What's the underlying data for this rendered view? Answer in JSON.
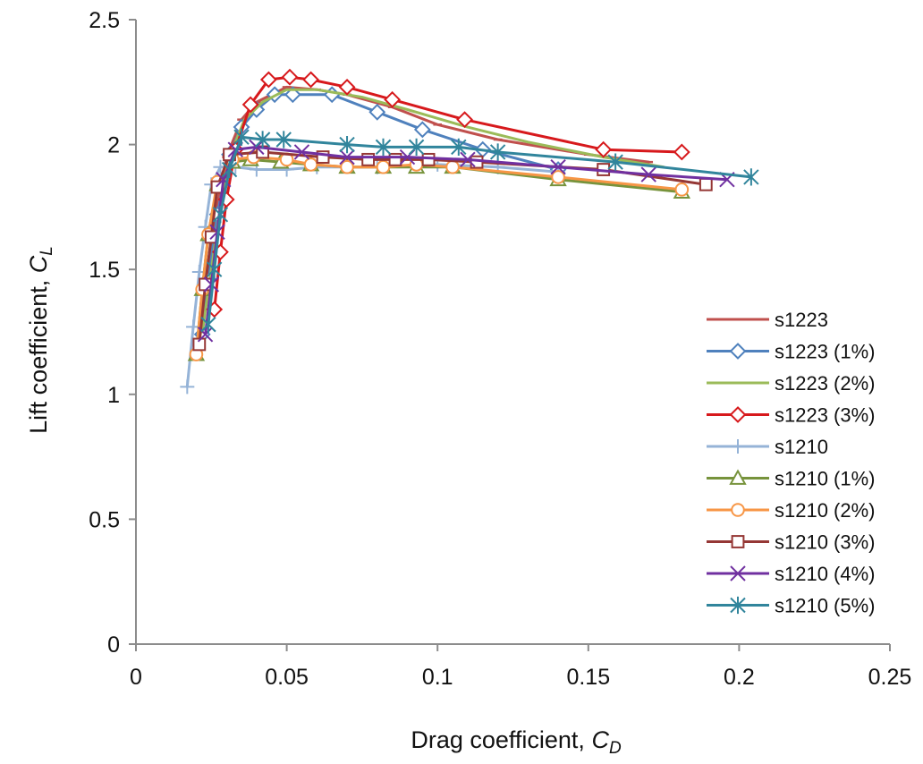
{
  "chart_data": {
    "type": "line",
    "title": "",
    "xlabel": "Drag coefficient, ",
    "xlabel_sub": "C",
    "xlabel_subscript": "D",
    "ylabel": "Lift coefficient, ",
    "ylabel_sub": "C",
    "ylabel_subscript": "L",
    "xlim": [
      0,
      0.25
    ],
    "ylim": [
      0,
      2.5
    ],
    "x_ticks": [
      0,
      0.05,
      0.1,
      0.15,
      0.2,
      0.25
    ],
    "x_tick_labels": [
      "0",
      "0.05",
      "0.1",
      "0.15",
      "0.2",
      "0.25"
    ],
    "y_ticks": [
      0,
      0.5,
      1,
      1.5,
      2,
      2.5
    ],
    "y_tick_labels": [
      "0",
      "0.5",
      "1",
      "1.5",
      "2",
      "2.5"
    ],
    "grid": false,
    "legend_position": "right",
    "series": [
      {
        "name": "s1223",
        "color": "#c0504d",
        "marker": "dash",
        "x": [
          0.021,
          0.023,
          0.026,
          0.03,
          0.035,
          0.04,
          0.05,
          0.06,
          0.07,
          0.085,
          0.1,
          0.12,
          0.15,
          0.17
        ],
        "y": [
          1.22,
          1.45,
          1.7,
          1.95,
          2.1,
          2.17,
          2.23,
          2.22,
          2.2,
          2.15,
          2.08,
          2.02,
          1.96,
          1.93
        ]
      },
      {
        "name": "s1223 (1%)",
        "color": "#4f81bd",
        "marker": "diamond",
        "x": [
          0.022,
          0.024,
          0.027,
          0.031,
          0.035,
          0.04,
          0.046,
          0.052,
          0.065,
          0.08,
          0.095,
          0.115,
          0.14
        ],
        "y": [
          1.24,
          1.46,
          1.72,
          1.96,
          2.07,
          2.14,
          2.2,
          2.2,
          2.2,
          2.13,
          2.06,
          1.98,
          1.9
        ]
      },
      {
        "name": "s1223 (2%)",
        "color": "#9bbb59",
        "marker": "none",
        "x": [
          0.022,
          0.025,
          0.028,
          0.032,
          0.036,
          0.042,
          0.05,
          0.06,
          0.075,
          0.09,
          0.11,
          0.13,
          0.155,
          0.175
        ],
        "y": [
          1.25,
          1.5,
          1.75,
          1.98,
          2.1,
          2.17,
          2.22,
          2.22,
          2.19,
          2.14,
          2.07,
          2.01,
          1.95,
          1.91
        ]
      },
      {
        "name": "s1223 (3%)",
        "color": "#d7191c",
        "marker": "diamond",
        "x": [
          0.026,
          0.028,
          0.03,
          0.033,
          0.038,
          0.044,
          0.051,
          0.058,
          0.07,
          0.085,
          0.109,
          0.155,
          0.181
        ],
        "y": [
          1.34,
          1.57,
          1.78,
          1.98,
          2.16,
          2.26,
          2.27,
          2.26,
          2.23,
          2.18,
          2.1,
          1.98,
          1.97
        ]
      },
      {
        "name": "s1210",
        "color": "#95b3d7",
        "marker": "plus",
        "x": [
          0.017,
          0.019,
          0.021,
          0.023,
          0.025,
          0.028,
          0.033,
          0.04,
          0.05,
          0.06,
          0.08,
          0.1,
          0.12,
          0.14
        ],
        "y": [
          1.03,
          1.27,
          1.49,
          1.67,
          1.84,
          1.91,
          1.91,
          1.9,
          1.9,
          1.91,
          1.91,
          1.92,
          1.91,
          1.89
        ]
      },
      {
        "name": "s1210 (1%)",
        "color": "#77933c",
        "marker": "triangle",
        "x": [
          0.02,
          0.022,
          0.024,
          0.027,
          0.032,
          0.038,
          0.048,
          0.058,
          0.07,
          0.082,
          0.093,
          0.105,
          0.14,
          0.181
        ],
        "y": [
          1.16,
          1.42,
          1.64,
          1.84,
          1.93,
          1.94,
          1.93,
          1.92,
          1.91,
          1.91,
          1.91,
          1.91,
          1.86,
          1.81
        ]
      },
      {
        "name": "s1210 (2%)",
        "color": "#f79646",
        "marker": "circle",
        "x": [
          0.02,
          0.022,
          0.024,
          0.027,
          0.032,
          0.039,
          0.05,
          0.058,
          0.07,
          0.082,
          0.093,
          0.105,
          0.14,
          0.181
        ],
        "y": [
          1.16,
          1.42,
          1.64,
          1.85,
          1.94,
          1.95,
          1.94,
          1.92,
          1.91,
          1.91,
          1.92,
          1.91,
          1.87,
          1.82
        ]
      },
      {
        "name": "s1210 (3%)",
        "color": "#953735",
        "marker": "square",
        "x": [
          0.021,
          0.023,
          0.025,
          0.027,
          0.031,
          0.042,
          0.062,
          0.077,
          0.086,
          0.097,
          0.113,
          0.155,
          0.189
        ],
        "y": [
          1.2,
          1.44,
          1.63,
          1.83,
          1.96,
          1.97,
          1.95,
          1.94,
          1.94,
          1.94,
          1.93,
          1.9,
          1.84
        ]
      },
      {
        "name": "s1210 (4%)",
        "color": "#7030a0",
        "marker": "x",
        "x": [
          0.023,
          0.025,
          0.027,
          0.029,
          0.033,
          0.04,
          0.055,
          0.07,
          0.09,
          0.11,
          0.14,
          0.17,
          0.196
        ],
        "y": [
          1.24,
          1.44,
          1.65,
          1.86,
          1.98,
          1.99,
          1.97,
          1.95,
          1.95,
          1.94,
          1.91,
          1.88,
          1.86
        ]
      },
      {
        "name": "s1210 (5%)",
        "color": "#31859c",
        "marker": "asterisk",
        "x": [
          0.024,
          0.026,
          0.028,
          0.031,
          0.035,
          0.042,
          0.049,
          0.07,
          0.082,
          0.093,
          0.107,
          0.12,
          0.159,
          0.204
        ],
        "y": [
          1.28,
          1.5,
          1.72,
          1.9,
          2.03,
          2.02,
          2.02,
          2.0,
          1.99,
          1.99,
          1.99,
          1.97,
          1.93,
          1.87
        ]
      }
    ]
  }
}
